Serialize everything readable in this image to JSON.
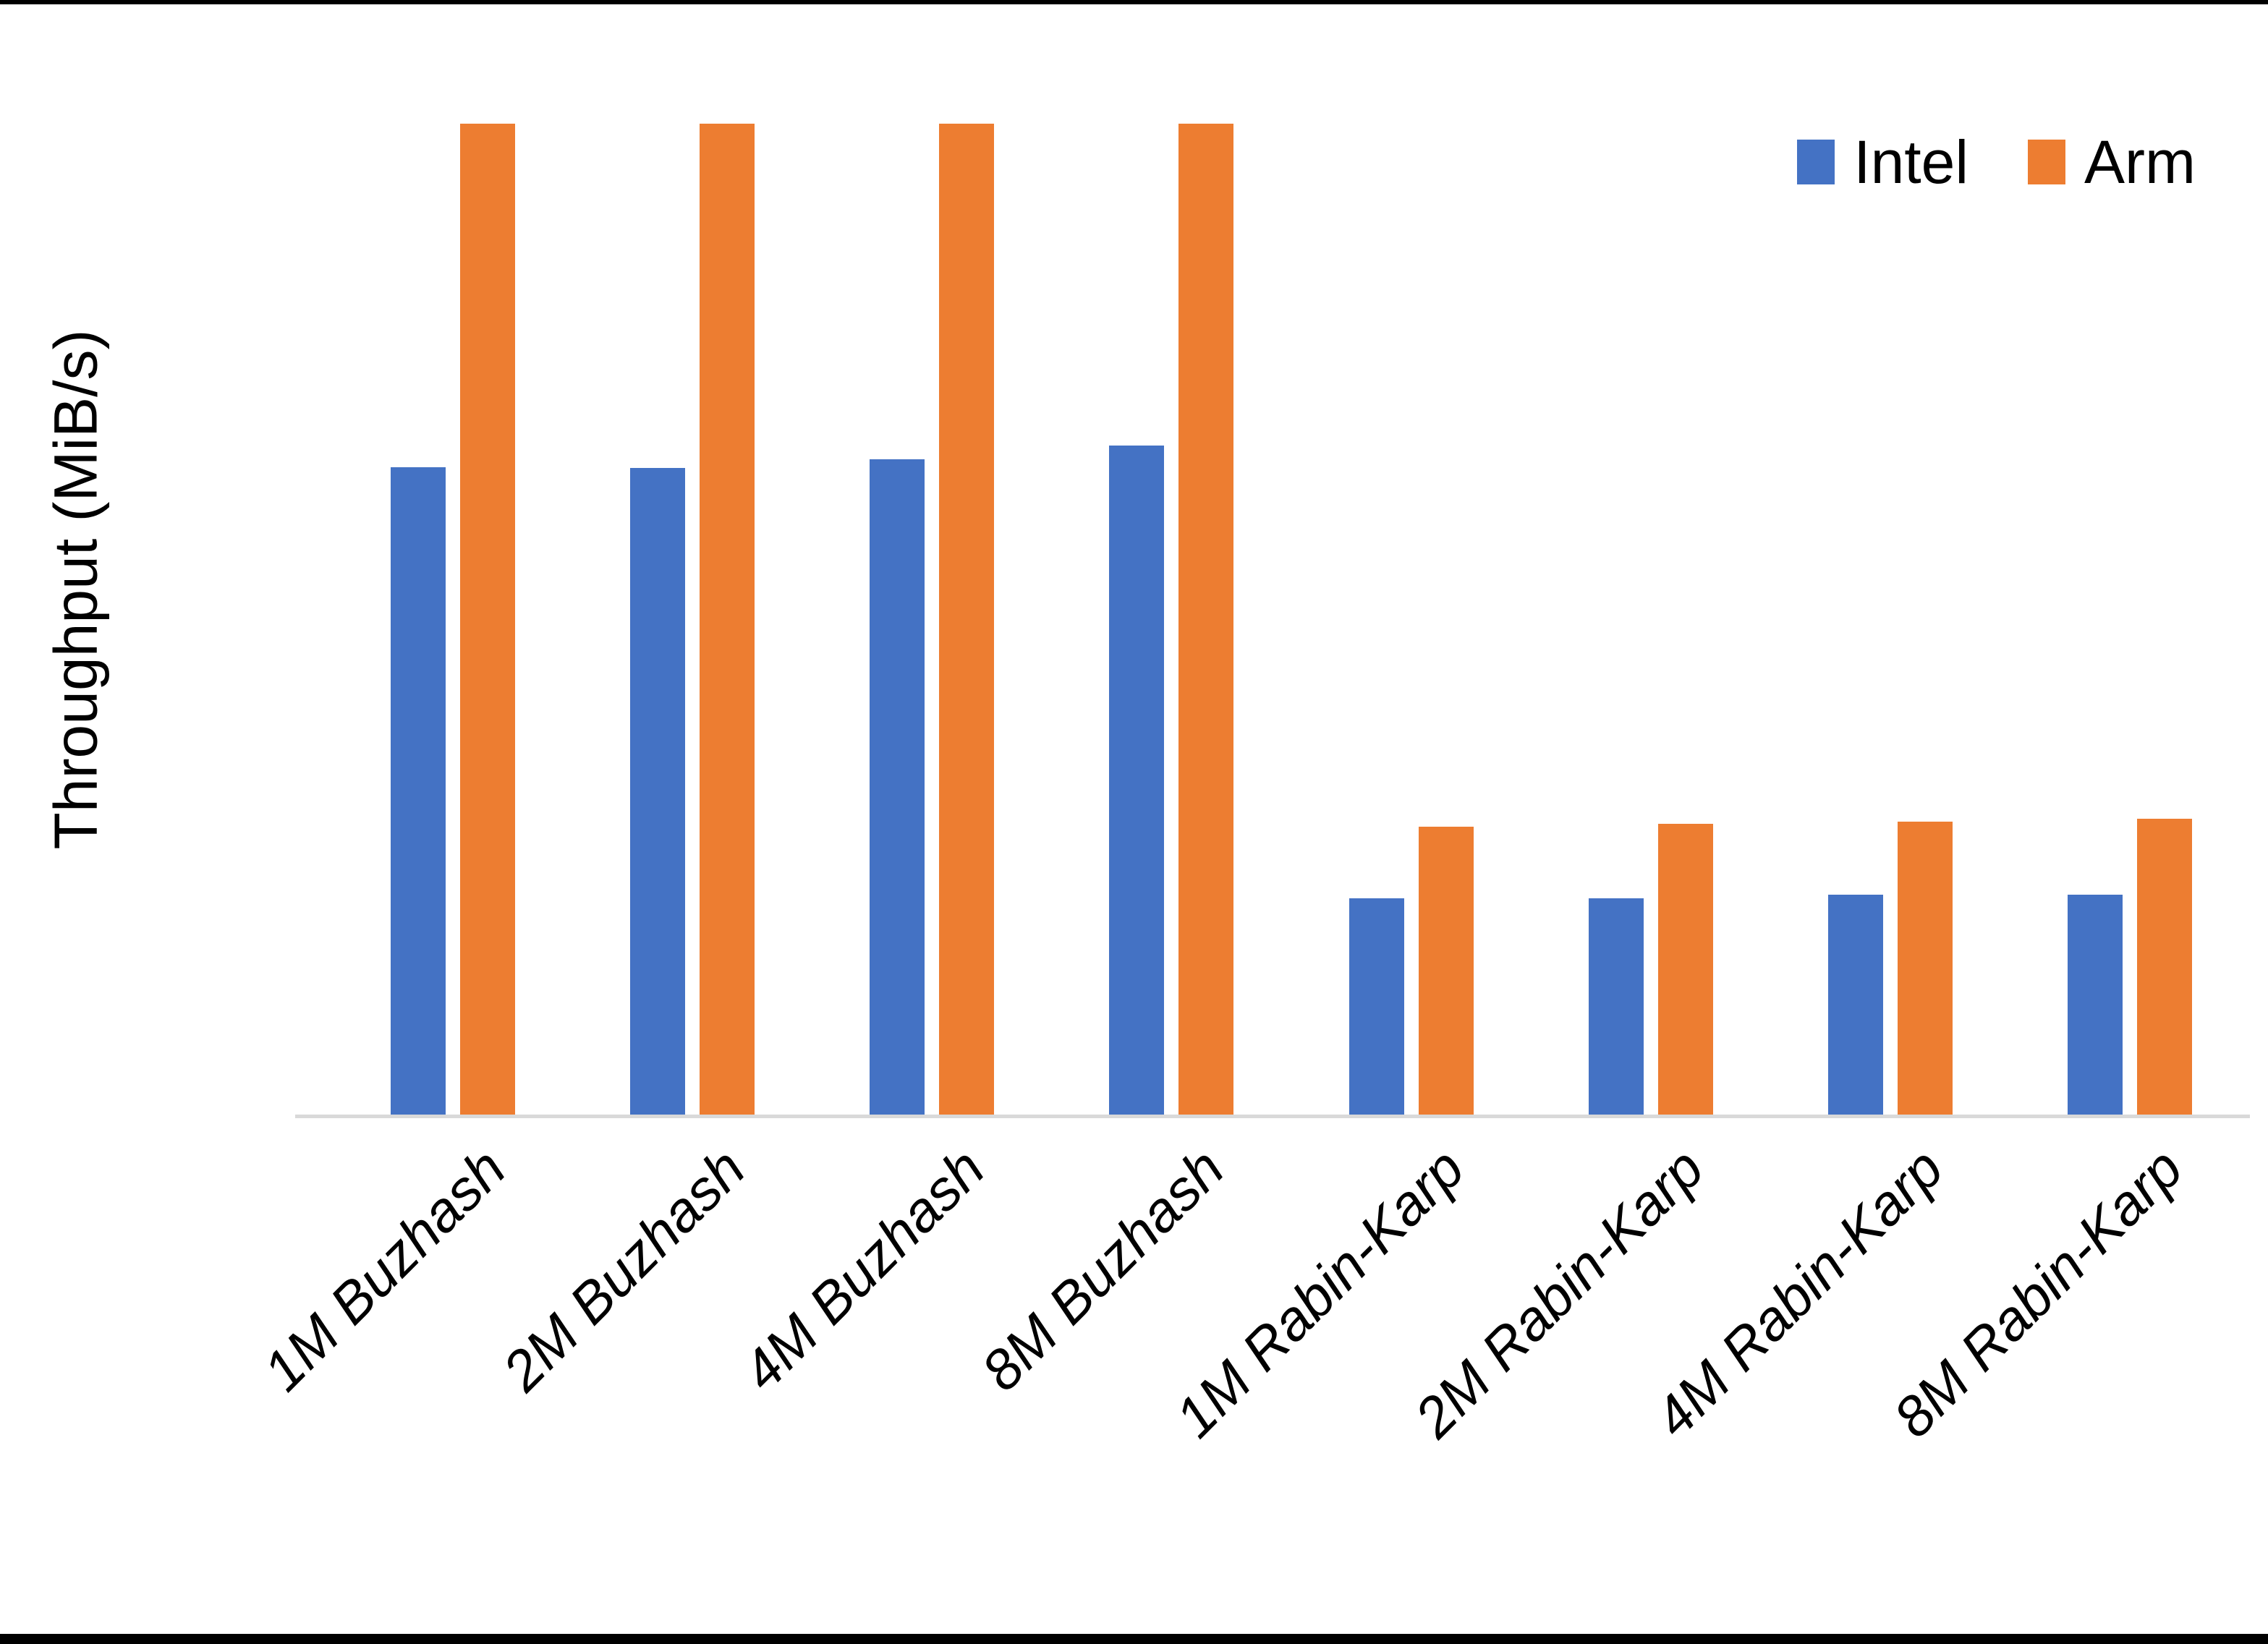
{
  "chart_data": {
    "type": "bar",
    "title": "",
    "xlabel": "",
    "ylabel": "Throughput (MiB/s)",
    "ylim": [
      0,
      1200
    ],
    "yticks": [
      0,
      200,
      400,
      600,
      800,
      1000,
      1200
    ],
    "grid": false,
    "legend_position": "top-right",
    "axis_line_color": "#D9D9D9",
    "categories": [
      "1M Buzhash",
      "2M Buzhash",
      "4M Buzhash",
      "8M Buzhash",
      "1M Rabin-Karp",
      "2M Rabin-Karp",
      "4M Rabin-Karp",
      "8M Rabin-Karp"
    ],
    "series": [
      {
        "name": "Intel",
        "color": "#4472C4",
        "values": [
          735,
          734,
          744,
          760,
          246,
          246,
          250,
          250
        ]
      },
      {
        "name": "Arm",
        "color": "#ED7D31",
        "values": [
          1125,
          1125,
          1125,
          1125,
          327,
          330,
          333,
          336
        ]
      }
    ]
  }
}
